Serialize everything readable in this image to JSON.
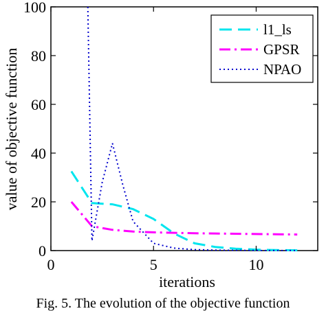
{
  "chart_data": {
    "type": "line",
    "title": "",
    "xlabel": "iterations",
    "ylabel": "value of objective function",
    "xlim": [
      0,
      13
    ],
    "ylim": [
      0,
      100
    ],
    "xticks": [
      0,
      5,
      10
    ],
    "yticks": [
      0,
      20,
      40,
      60,
      80,
      100
    ],
    "grid": false,
    "legend_position": "top-right",
    "series": [
      {
        "name": "l1_ls",
        "color": "#00e5ee",
        "style": "dashed",
        "x": [
          1,
          2,
          3,
          4,
          5,
          6,
          7,
          8,
          9,
          10,
          11,
          12
        ],
        "y": [
          32.5,
          19.5,
          19,
          17,
          13,
          7,
          3,
          1.5,
          0.8,
          0.4,
          0.2,
          0.1
        ]
      },
      {
        "name": "GPSR",
        "color": "#ff00ff",
        "style": "dashdot",
        "x": [
          1,
          2,
          3,
          4,
          5,
          6,
          7,
          8,
          9,
          10,
          11,
          12
        ],
        "y": [
          20,
          10,
          8.5,
          7.8,
          7.5,
          7.3,
          7.1,
          7,
          6.9,
          6.8,
          6.7,
          6.6
        ]
      },
      {
        "name": "NPAO",
        "color": "#0000cd",
        "style": "dotted",
        "x": [
          1.8,
          2,
          2.5,
          3,
          3.5,
          4,
          5,
          6,
          7,
          8,
          9,
          10,
          11,
          12
        ],
        "y": [
          100,
          4,
          28,
          44,
          27,
          12,
          3,
          1,
          0.4,
          0.2,
          0.1,
          0.05,
          0.03,
          0.02
        ]
      }
    ]
  },
  "caption": "Fig. 5. The evolution of the objective function"
}
